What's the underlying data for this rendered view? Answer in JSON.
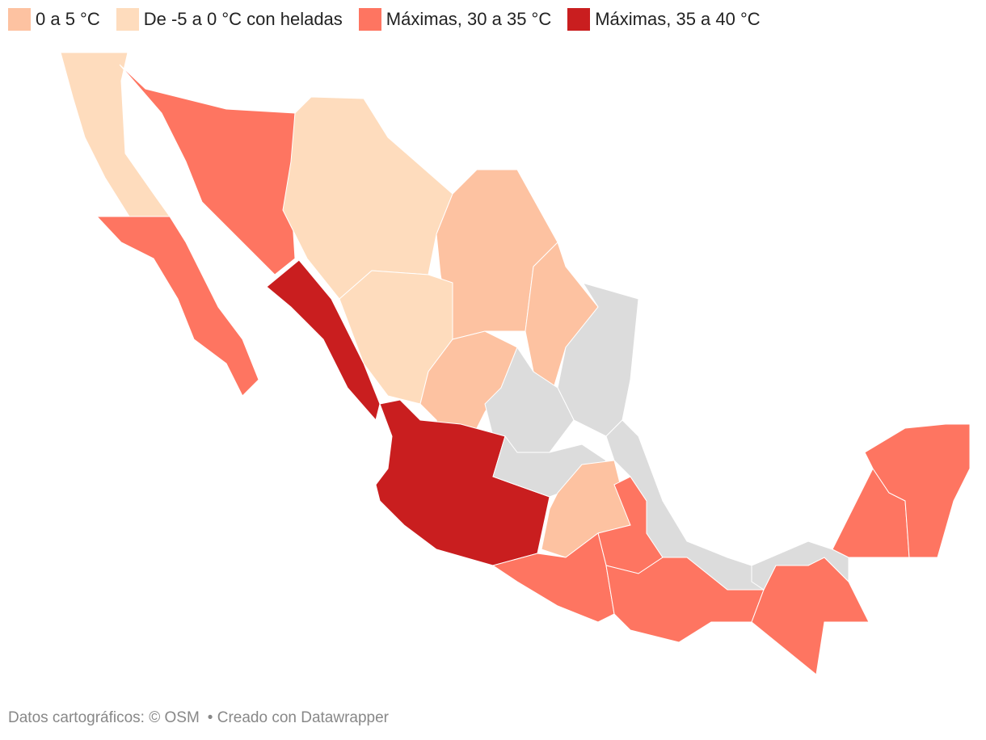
{
  "legend": [
    {
      "label": "0 a 5 °C",
      "color": "#fdc2a1"
    },
    {
      "label": "De -5 a 0 °C con heladas",
      "color": "#fedcbd"
    },
    {
      "label": "Máximas, 30 a 35 °C",
      "color": "#fe7561"
    },
    {
      "label": "Máximas, 35 a 40 °C",
      "color": "#c91e1f"
    }
  ],
  "footer": {
    "source": "Datos cartográficos: © OSM",
    "credit": "• Creado con Datawrapper"
  }
}
